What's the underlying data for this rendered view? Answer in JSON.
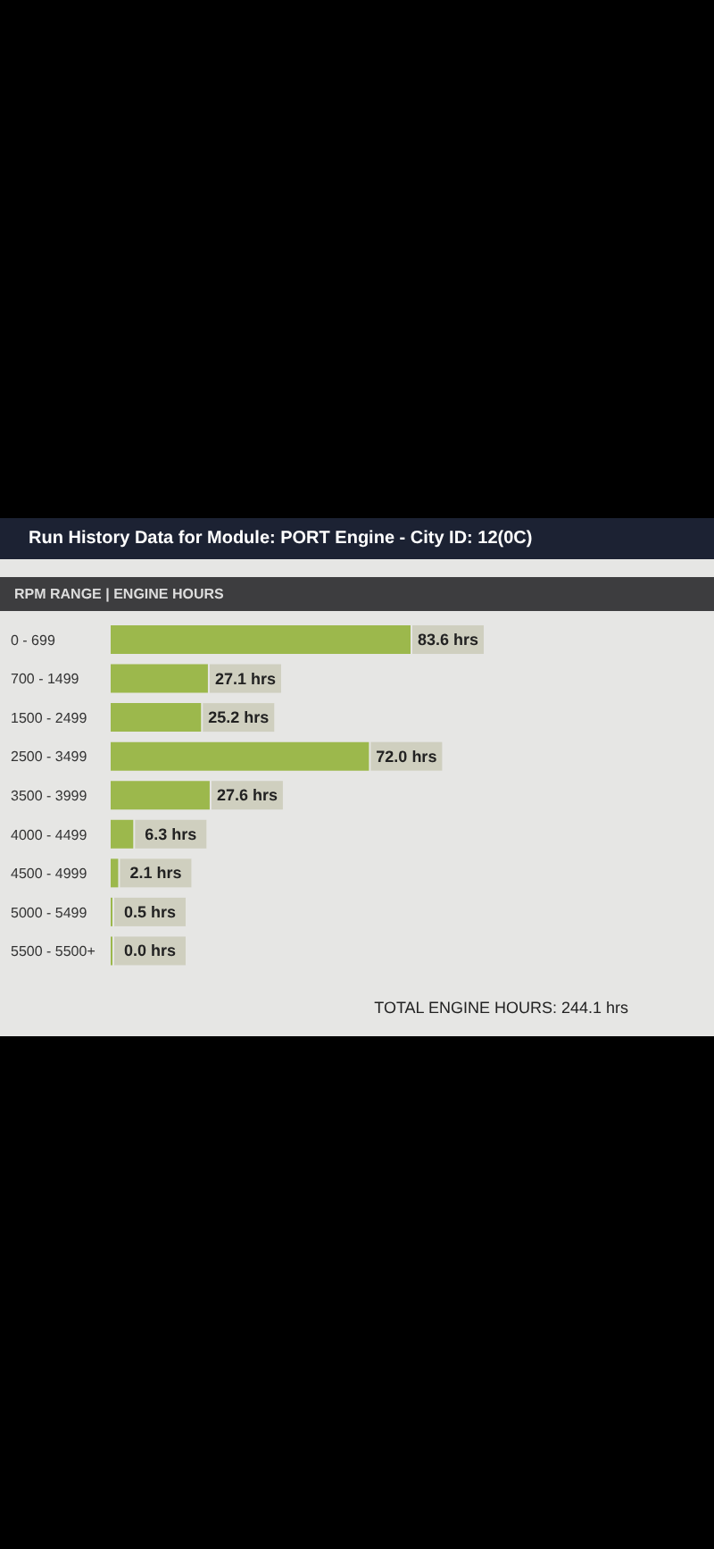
{
  "chart_data": {
    "type": "bar",
    "orientation": "horizontal",
    "title": "Run History Data for Module: PORT Engine - City ID: 12(0C)",
    "subtitle": "RPM RANGE | ENGINE HOURS",
    "categories": [
      "0 - 699",
      "700 - 1499",
      "1500 - 2499",
      "2500 - 3499",
      "3500 - 3999",
      "4000 - 4499",
      "4500 - 4999",
      "5000 - 5499",
      "5500 - 5500+"
    ],
    "values": [
      83.6,
      27.1,
      25.2,
      72.0,
      27.6,
      6.3,
      2.1,
      0.5,
      0.0
    ],
    "value_labels": [
      "83.6 hrs",
      "27.1 hrs",
      "25.2 hrs",
      "72.0 hrs",
      "27.6 hrs",
      "6.3 hrs",
      "2.1 hrs",
      "0.5 hrs",
      "0.0 hrs"
    ],
    "color": "#9cb84c",
    "tick_labels": "y",
    "grid": false,
    "legend": false,
    "annotations": [
      "TOTAL ENGINE HOURS: 244.1 hrs"
    ]
  }
}
